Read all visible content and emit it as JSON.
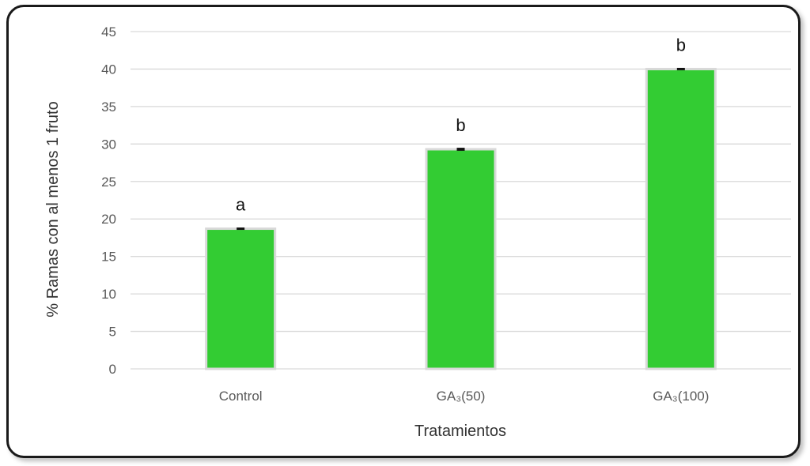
{
  "chart_data": {
    "type": "bar",
    "categories": [
      "Control",
      "GA₃(50)",
      "GA₃(100)"
    ],
    "values": [
      18.7,
      29.3,
      40.0
    ],
    "errors": [
      0.15,
      0.2,
      0.1
    ],
    "significance_letters": [
      "a",
      "b",
      "b"
    ],
    "xlabel": "Tratamientos",
    "ylabel": "% Ramas con al menos 1 fruto",
    "ylim": [
      0,
      45
    ],
    "yticks": [
      0,
      5,
      10,
      15,
      20,
      25,
      30,
      35,
      40,
      45
    ],
    "grid": true,
    "legend": "none",
    "bar_color": "#33cc33",
    "bar_edge_color": "#d9d9d9",
    "gridline_color": "#d9d9d9"
  }
}
